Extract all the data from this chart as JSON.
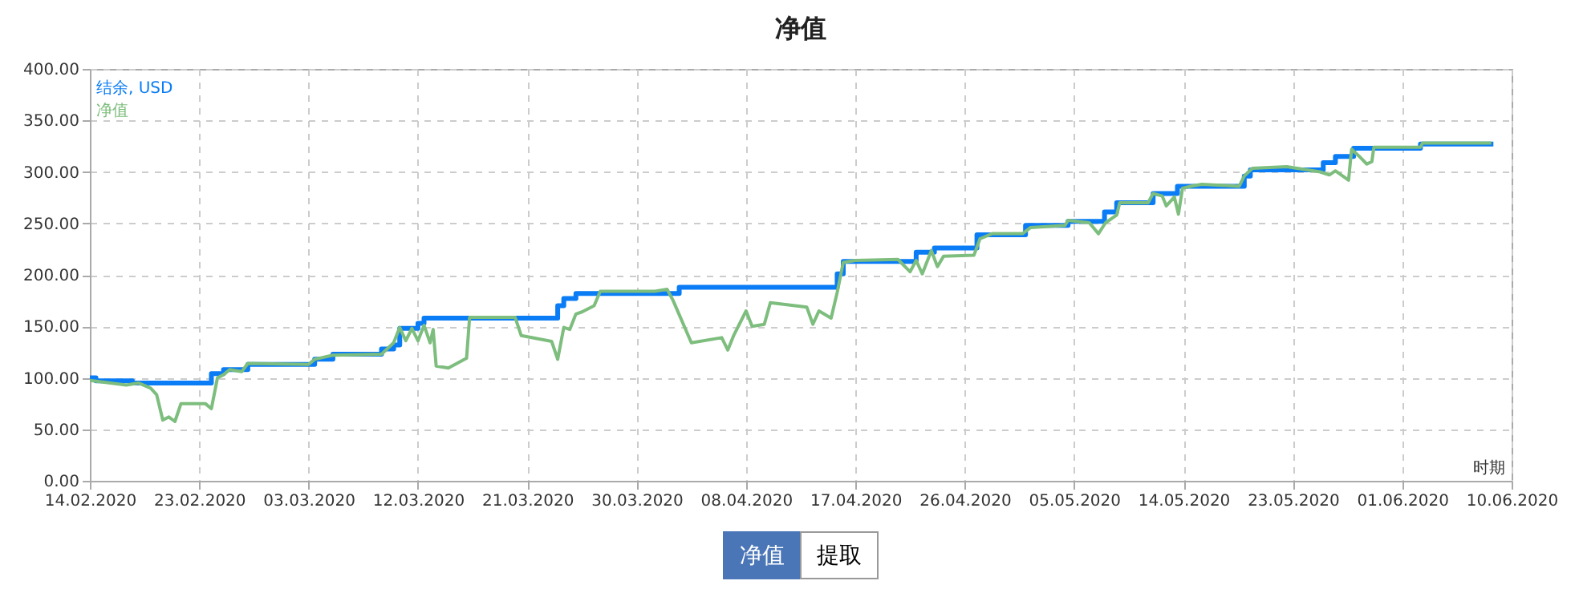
{
  "chart_data": {
    "type": "line",
    "title": "净值",
    "xlabel": "时期",
    "xlim": [
      "2020-02-14",
      "2020-06-10"
    ],
    "xticks": [
      {
        "value": "2020-02-14",
        "label": "14.02.2020"
      },
      {
        "value": "2020-02-23",
        "label": "23.02.2020"
      },
      {
        "value": "2020-03-03",
        "label": "03.03.2020"
      },
      {
        "value": "2020-03-12",
        "label": "12.03.2020"
      },
      {
        "value": "2020-03-21",
        "label": "21.03.2020"
      },
      {
        "value": "2020-03-30",
        "label": "30.03.2020"
      },
      {
        "value": "2020-04-08",
        "label": "08.04.2020"
      },
      {
        "value": "2020-04-17",
        "label": "17.04.2020"
      },
      {
        "value": "2020-04-26",
        "label": "26.04.2020"
      },
      {
        "value": "2020-05-05",
        "label": "05.05.2020"
      },
      {
        "value": "2020-05-14",
        "label": "14.05.2020"
      },
      {
        "value": "2020-05-23",
        "label": "23.05.2020"
      },
      {
        "value": "2020-06-01",
        "label": "01.06.2020"
      },
      {
        "value": "2020-06-10",
        "label": "10.06.2020"
      }
    ],
    "ylim": [
      0,
      400
    ],
    "yticks": [
      {
        "value": 0,
        "label": "0.00"
      },
      {
        "value": 50,
        "label": "50.00"
      },
      {
        "value": 100,
        "label": "100.00"
      },
      {
        "value": 150,
        "label": "150.00"
      },
      {
        "value": 200,
        "label": "200.00"
      },
      {
        "value": 250,
        "label": "250.00"
      },
      {
        "value": 300,
        "label": "300.00"
      },
      {
        "value": 350,
        "label": "350.00"
      },
      {
        "value": 400,
        "label": "400.00"
      }
    ],
    "grid": true,
    "legend": "top left",
    "annotations": [
      "净值",
      "提取"
    ],
    "series": [
      {
        "name": "结余, USD",
        "type": "step",
        "color": "#0a7cf5",
        "x": [
          "2020-02-14T00:00",
          "2020-02-14T12:00",
          "2020-02-17T12:00",
          "2020-02-24T00:00",
          "2020-02-25T00:00",
          "2020-02-27T00:00",
          "2020-03-03T12:00",
          "2020-03-05T00:00",
          "2020-03-09T00:00",
          "2020-03-10T00:00",
          "2020-03-10T12:00",
          "2020-03-12T00:00",
          "2020-03-12T12:00",
          "2020-03-23T12:00",
          "2020-03-24T00:00",
          "2020-03-25T00:00",
          "2020-04-02T12:00",
          "2020-04-15T12:00",
          "2020-04-16T00:00",
          "2020-04-22T00:00",
          "2020-04-23T12:00",
          "2020-04-27T00:00",
          "2020-05-01T00:00",
          "2020-05-04T12:00",
          "2020-05-07T12:00",
          "2020-05-08T12:00",
          "2020-05-11T12:00",
          "2020-05-13T12:00",
          "2020-05-19T00:00",
          "2020-05-19T12:00",
          "2020-05-25T12:00",
          "2020-05-26T12:00",
          "2020-05-28T00:00",
          "2020-06-02T12:00",
          "2020-06-08T12:00"
        ],
        "values": [
          100,
          97,
          95,
          104,
          108,
          113,
          118,
          123,
          128,
          132,
          148,
          153,
          158,
          170,
          177,
          182,
          188,
          201,
          213,
          222,
          226,
          239,
          248,
          252,
          261,
          270,
          279,
          286,
          296,
          302,
          309,
          315,
          323,
          327,
          327
        ]
      },
      {
        "name": "净值",
        "type": "line",
        "color": "#7dbd7d",
        "x": [
          "2020-02-14T00:00",
          "2020-02-17T00:00",
          "2020-02-18T00:00",
          "2020-02-19T00:00",
          "2020-02-19T12:00",
          "2020-02-20T00:00",
          "2020-02-20T12:00",
          "2020-02-21T00:00",
          "2020-02-21T12:00",
          "2020-02-23T12:00",
          "2020-02-24T00:00",
          "2020-02-24T12:00",
          "2020-02-25T00:00",
          "2020-02-25T12:00",
          "2020-02-26T12:00",
          "2020-02-27T00:00",
          "2020-03-03T00:00",
          "2020-03-03T12:00",
          "2020-03-05T00:00",
          "2020-03-09T00:00",
          "2020-03-10T00:00",
          "2020-03-10T12:00",
          "2020-03-11T00:00",
          "2020-03-11T12:00",
          "2020-03-12T00:00",
          "2020-03-12T12:00",
          "2020-03-13T00:00",
          "2020-03-13T06:00",
          "2020-03-13T12:00",
          "2020-03-14T12:00",
          "2020-03-16T00:00",
          "2020-03-16T06:00",
          "2020-03-20T00:00",
          "2020-03-20T12:00",
          "2020-03-23T00:00",
          "2020-03-23T12:00",
          "2020-03-24T00:00",
          "2020-03-24T12:00",
          "2020-03-25T00:00",
          "2020-03-25T12:00",
          "2020-03-26T12:00",
          "2020-03-27T00:00",
          "2020-03-31T12:00",
          "2020-04-01T12:00",
          "2020-04-02T00:00",
          "2020-04-03T12:00",
          "2020-04-06T00:00",
          "2020-04-06T12:00",
          "2020-04-07T00:00",
          "2020-04-08T00:00",
          "2020-04-08T12:00",
          "2020-04-09T12:00",
          "2020-04-10T00:00",
          "2020-04-13T00:00",
          "2020-04-13T12:00",
          "2020-04-14T00:00",
          "2020-04-15T00:00",
          "2020-04-15T12:00",
          "2020-04-16T00:00",
          "2020-04-17T00:00",
          "2020-04-20T12:00",
          "2020-04-21T12:00",
          "2020-04-22T00:00",
          "2020-04-22T12:00",
          "2020-04-23T06:00",
          "2020-04-23T18:00",
          "2020-04-24T06:00",
          "2020-04-26T18:00",
          "2020-04-27T06:00",
          "2020-04-28T06:00",
          "2020-04-30T18:00",
          "2020-05-01T10:00",
          "2020-05-04T06:00",
          "2020-05-04T12:00",
          "2020-05-06T06:00",
          "2020-05-07T00:00",
          "2020-05-07T14:00",
          "2020-05-08T12:00",
          "2020-05-08T18:00",
          "2020-05-11T02:00",
          "2020-05-11T12:00",
          "2020-05-12T06:00",
          "2020-05-12T14:00",
          "2020-05-13T06:00",
          "2020-05-13T14:00",
          "2020-05-13T22:00",
          "2020-05-14T14:00",
          "2020-05-15T12:00",
          "2020-05-18T14:00",
          "2020-05-19T00:00",
          "2020-05-19T16:00",
          "2020-05-22T12:00",
          "2020-05-25T06:00",
          "2020-05-26T00:00",
          "2020-05-26T12:00",
          "2020-05-27T14:00",
          "2020-05-27T20:00",
          "2020-05-28T10:00",
          "2020-05-29T02:00",
          "2020-05-29T12:00",
          "2020-05-29T16:00",
          "2020-06-02T12:00",
          "2020-06-02T16:00",
          "2020-06-08T08:00"
        ],
        "values": [
          97.5,
          93,
          95,
          90,
          83.5,
          59,
          62,
          57.6,
          75,
          75,
          70,
          100,
          103,
          108,
          106,
          114,
          113,
          118,
          122,
          123,
          134,
          149,
          136,
          148,
          136,
          151,
          134,
          147,
          111.5,
          109.5,
          119,
          158.7,
          158.7,
          141,
          135.4,
          118,
          149,
          147,
          162,
          164,
          170,
          184,
          184,
          186,
          175,
          134,
          139,
          127,
          141.6,
          165,
          150,
          152,
          173,
          168.6,
          152,
          165,
          158,
          183,
          212,
          214,
          215,
          203,
          214,
          201,
          223.6,
          208,
          218,
          219,
          235,
          240,
          240,
          246,
          248,
          253,
          250.6,
          240,
          250.6,
          258,
          270,
          270,
          279,
          276.5,
          267,
          275.5,
          259,
          284,
          286,
          288,
          286,
          296,
          303.5,
          305,
          300,
          297,
          301,
          292,
          322,
          315.6,
          307.6,
          310,
          324,
          324,
          328,
          328
        ]
      }
    ]
  }
}
